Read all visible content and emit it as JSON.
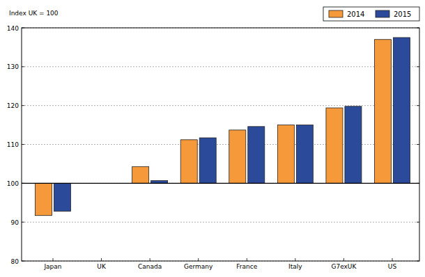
{
  "chart_data": {
    "type": "bar",
    "title": "Index UK = 100",
    "categories": [
      "Japan",
      "UK",
      "Canada",
      "Germany",
      "France",
      "Italy",
      "G7exUK",
      "US"
    ],
    "series": [
      {
        "name": "2014",
        "color": "#f5993a",
        "values": [
          91.7,
          100,
          104.3,
          111.2,
          113.7,
          115.0,
          119.4,
          137.0
        ]
      },
      {
        "name": "2015",
        "color": "#2b4a99",
        "values": [
          92.8,
          100,
          100.7,
          111.7,
          114.6,
          115.0,
          119.8,
          137.5
        ]
      }
    ],
    "baseline": 100,
    "ylim": [
      80,
      140
    ],
    "yticks": [
      80,
      90,
      100,
      110,
      120,
      130,
      140
    ],
    "grid": true,
    "legend": "upper right"
  }
}
